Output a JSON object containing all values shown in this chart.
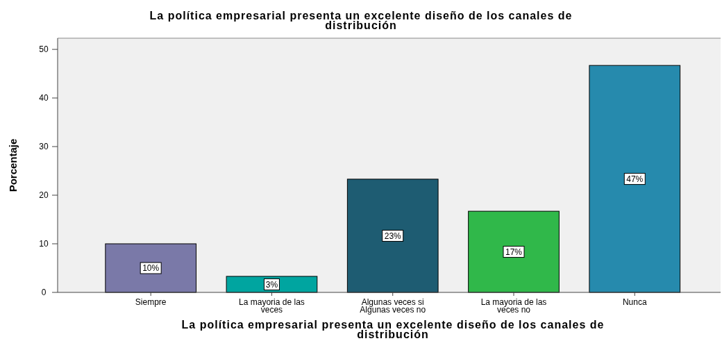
{
  "chart_data": {
    "type": "bar",
    "title": "La política empresarial presenta un excelente diseño de los canales de distribución",
    "xlabel": "La política empresarial presenta un excelente diseño de los canales de distribución",
    "ylabel": "Porcentaje",
    "categories": [
      "Siempre",
      "La mayoria de las veces",
      "Algunas veces si Algunas veces no",
      "La mayoria de las veces no",
      "Nunca"
    ],
    "values": [
      10,
      3.3,
      23.3,
      16.7,
      46.7
    ],
    "colors": [
      "#7a79a8",
      "#00a5a0",
      "#1e5c72",
      "#30b84a",
      "#268aad"
    ],
    "value_labels": [
      "10%",
      "3%",
      "23%",
      "17%",
      "47%"
    ],
    "ylim": [
      0,
      52.3
    ],
    "yticks": [
      0,
      10,
      20,
      30,
      40,
      50
    ],
    "grid": false
  }
}
